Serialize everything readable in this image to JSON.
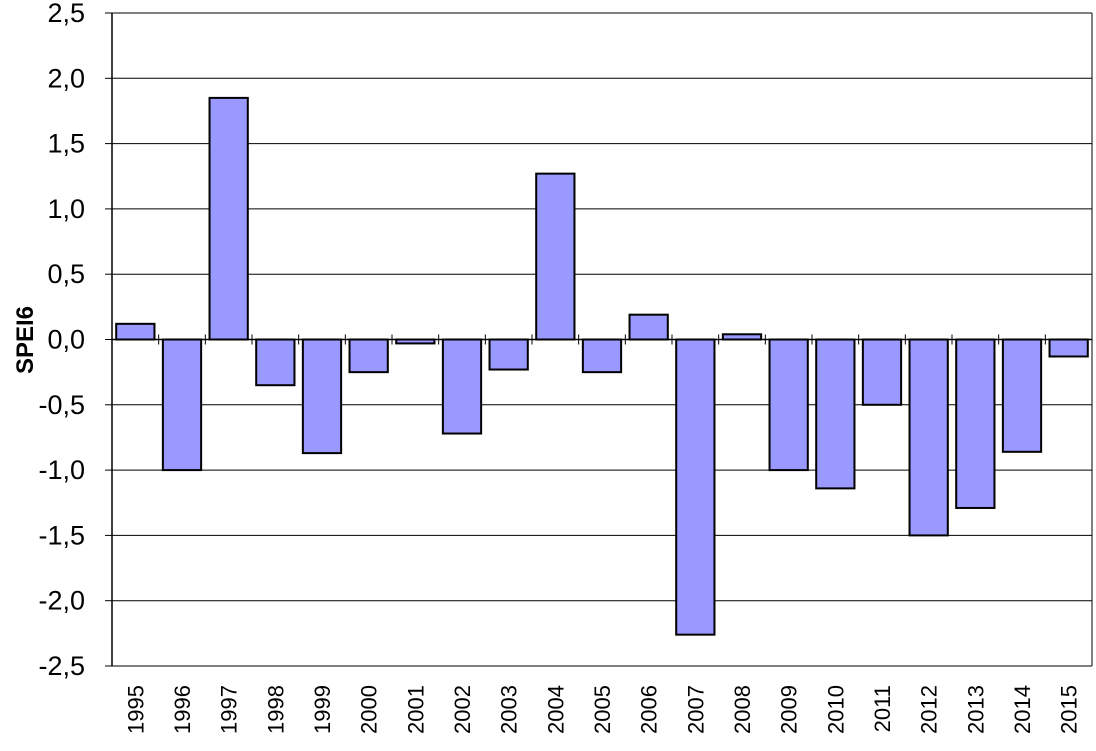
{
  "chart_data": {
    "type": "bar",
    "title": "",
    "xlabel": "",
    "ylabel": "SPEI6",
    "ylim": [
      -2.5,
      2.5
    ],
    "ytick_step": 0.5,
    "grid": true,
    "legend": "none",
    "categories": [
      "1995",
      "1996",
      "1997",
      "1998",
      "1999",
      "2000",
      "2001",
      "2002",
      "2003",
      "2004",
      "2005",
      "2006",
      "2007",
      "2008",
      "2009",
      "2010",
      "2011",
      "2012",
      "2013",
      "2014",
      "2015"
    ],
    "values": [
      0.12,
      -1.0,
      1.85,
      -0.35,
      -0.87,
      -0.25,
      -0.03,
      -0.72,
      -0.23,
      1.27,
      -0.25,
      0.19,
      -2.26,
      0.04,
      -1.0,
      -1.14,
      -0.5,
      -1.5,
      -1.29,
      -0.86,
      -0.13
    ],
    "bar_color": "#9999ff",
    "bar_border_color": "#000000",
    "grid_color": "#000000"
  }
}
